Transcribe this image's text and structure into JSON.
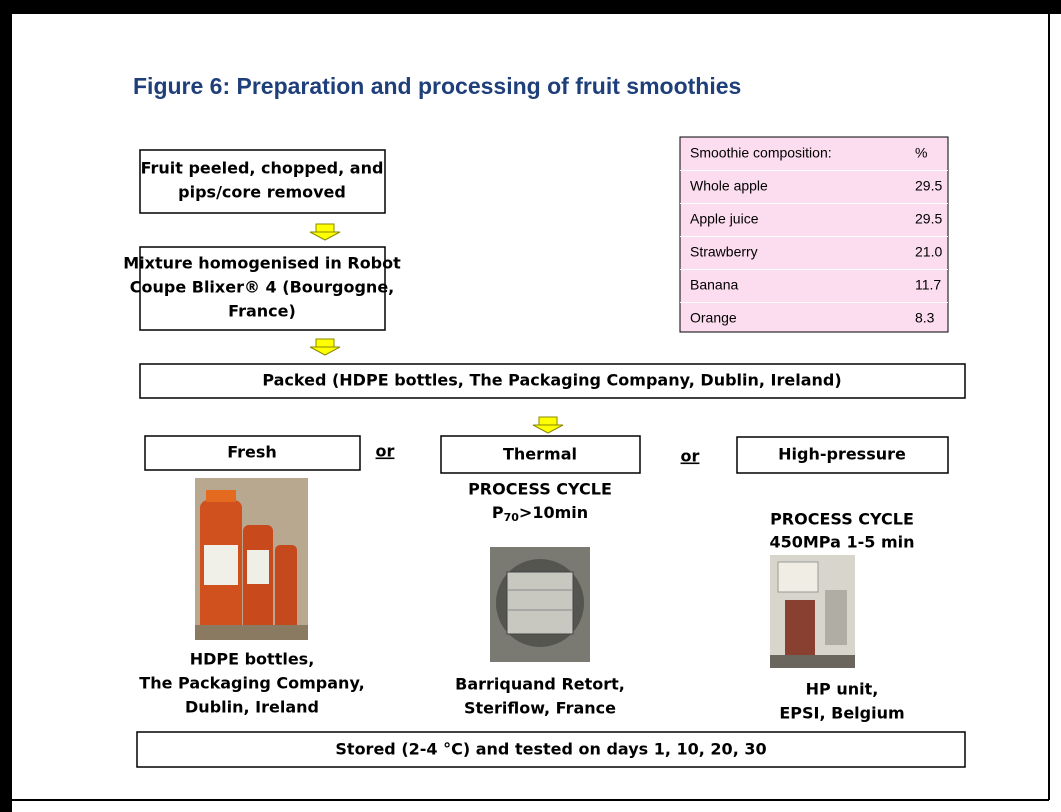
{
  "title": "Figure 6: Preparation and processing of fruit smoothies",
  "steps": [
    [
      "Fruit peeled, chopped, and",
      "pips/core removed"
    ],
    [
      "Mixture homogenised in Robot",
      "Coupe Blixer® 4 (Bourgogne,",
      "France)"
    ],
    [
      "Packed (HDPE bottles, The Packaging Company, Dublin, Ireland)"
    ]
  ],
  "composition": {
    "header": [
      "Smoothie composition:",
      "%"
    ],
    "rows": [
      [
        "Whole apple",
        "29.5"
      ],
      [
        "Apple juice",
        "29.5"
      ],
      [
        "Strawberry",
        "21.0"
      ],
      [
        "Banana",
        "11.7"
      ],
      [
        "Orange",
        "8.3"
      ]
    ]
  },
  "separator": "or",
  "options": [
    {
      "label": "Fresh",
      "cycle": [],
      "caption": [
        "HDPE bottles,",
        "The Packaging Company,",
        "Dublin, Ireland"
      ]
    },
    {
      "label": "Thermal",
      "cycle": [
        "PROCESS CYCLE"
      ],
      "cycle_formula": [
        "P",
        "70",
        ">10min"
      ],
      "caption": [
        "Barriquand Retort,",
        "Steriflow, France"
      ]
    },
    {
      "label": "High-pressure",
      "cycle": [
        "PROCESS CYCLE",
        "450MPa 1-5 min"
      ],
      "caption": [
        "HP unit,",
        "EPSI, Belgium"
      ]
    }
  ],
  "final": "Stored (2-4 °C) and tested on days 1, 10, 20, 30"
}
